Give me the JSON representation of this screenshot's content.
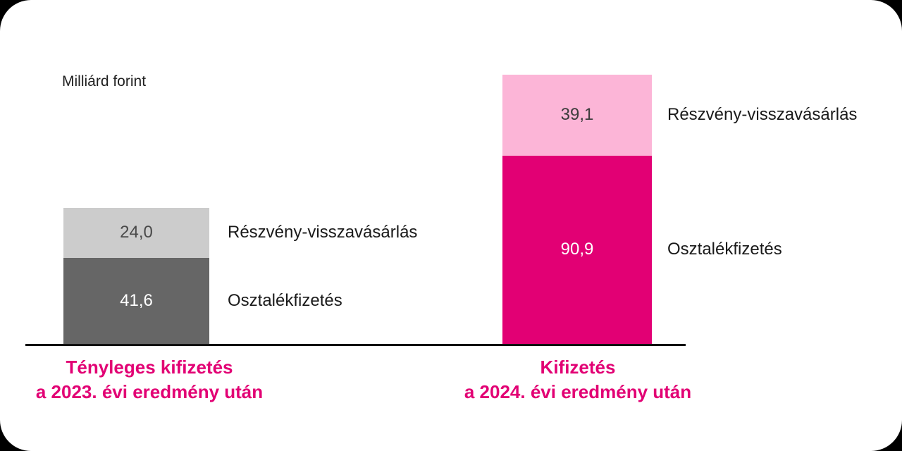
{
  "window": {
    "background": "#000000",
    "card_background": "#ffffff"
  },
  "chart_data": {
    "type": "bar",
    "stacked": true,
    "title": "",
    "unit_label": "Milliárd forint",
    "decimal_style": "comma",
    "axis_color": "#121212",
    "accent_color": "#e20074",
    "legend_position": "right-of-bars",
    "categories": [
      "Tényleges kifizetés a 2023. évi eredmény után",
      "Kifizetés a 2024. évi eredmény után"
    ],
    "series": [
      {
        "name": "Osztalékfizetés",
        "values": [
          41.6,
          90.9
        ]
      },
      {
        "name": "Részvény-visszavásárlás",
        "values": [
          24.0,
          39.1
        ]
      }
    ],
    "groups": [
      {
        "caption_lines": [
          "Tényleges kifizetés",
          "a 2023. évi eredmény után"
        ],
        "caption_color": "#e20074",
        "total": 65.6,
        "segments_top_to_bottom": [
          {
            "label": "Részvény-visszavásárlás",
            "value": 24.0,
            "value_label": "24,0",
            "fill": "#cccccc",
            "value_color": "#4a4a4a"
          },
          {
            "label": "Osztalékfizetés",
            "value": 41.6,
            "value_label": "41,6",
            "fill": "#666666",
            "value_color": "#ffffff"
          }
        ]
      },
      {
        "caption_lines": [
          "Kifizetés",
          "a 2024. évi eredmény után"
        ],
        "caption_color": "#e20074",
        "total": 130.0,
        "segments_top_to_bottom": [
          {
            "label": "Részvény-visszavásárlás",
            "value": 39.1,
            "value_label": "39,1",
            "fill": "#fcb5d7",
            "value_color": "#3c3c3c"
          },
          {
            "label": "Osztalékfizetés",
            "value": 90.9,
            "value_label": "90,9",
            "fill": "#e20074",
            "value_color": "#ffffff"
          }
        ]
      }
    ]
  }
}
